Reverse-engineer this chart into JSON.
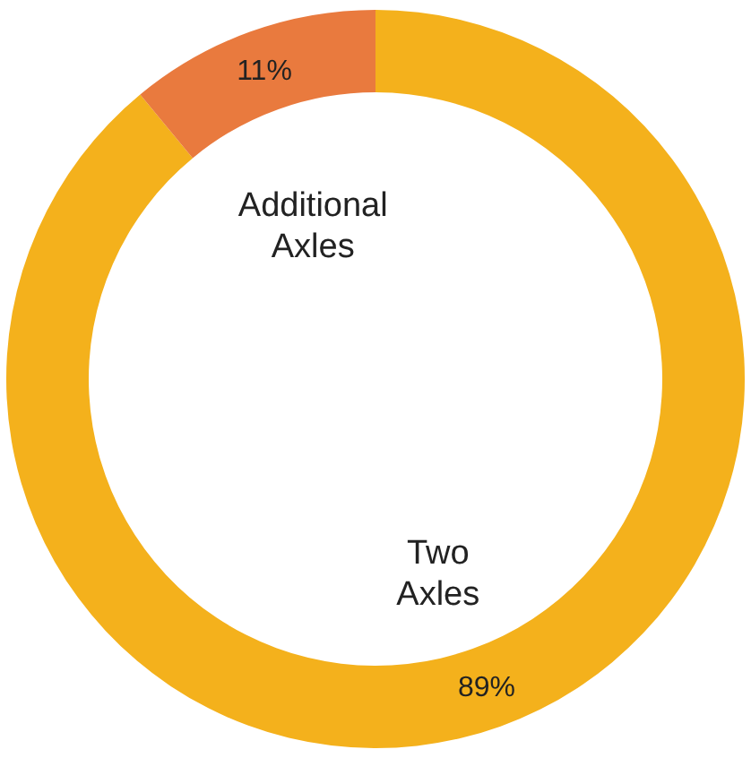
{
  "chart_data": {
    "type": "donut",
    "categories": [
      "Two Axles",
      "Additional Axles"
    ],
    "values": [
      89,
      11
    ],
    "colors": [
      "#f4b11c",
      "#e97a3e"
    ],
    "value_labels": [
      "89%",
      "11%"
    ]
  }
}
